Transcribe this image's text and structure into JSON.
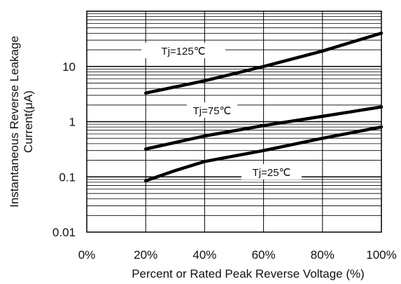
{
  "chart_data": {
    "type": "line",
    "xlabel": "Percent or Rated Peak Reverse Voltage (%)",
    "ylabel_lines": [
      "Instantaneous Reverse Leakage",
      "Current(μA)"
    ],
    "y_scale": "log",
    "xlim": [
      0,
      100
    ],
    "ylim": [
      0.01,
      100
    ],
    "grid": true,
    "x_ticks": [
      "0%",
      "20%",
      "40%",
      "60%",
      "80%",
      "100%"
    ],
    "y_ticks": [
      "0.01",
      "0.1",
      "1",
      "10"
    ],
    "series": [
      {
        "name": "Tj=125℃",
        "x": [
          20,
          40,
          60,
          80,
          100
        ],
        "y": [
          3.3,
          5.5,
          10,
          19,
          40
        ]
      },
      {
        "name": "Tj=75℃",
        "x": [
          20,
          40,
          60,
          80,
          100
        ],
        "y": [
          0.32,
          0.55,
          0.85,
          1.25,
          1.85
        ]
      },
      {
        "name": "Tj=25℃",
        "x": [
          20,
          30,
          40,
          60,
          80,
          100
        ],
        "y": [
          0.085,
          0.13,
          0.19,
          0.3,
          0.5,
          0.8
        ]
      }
    ]
  }
}
